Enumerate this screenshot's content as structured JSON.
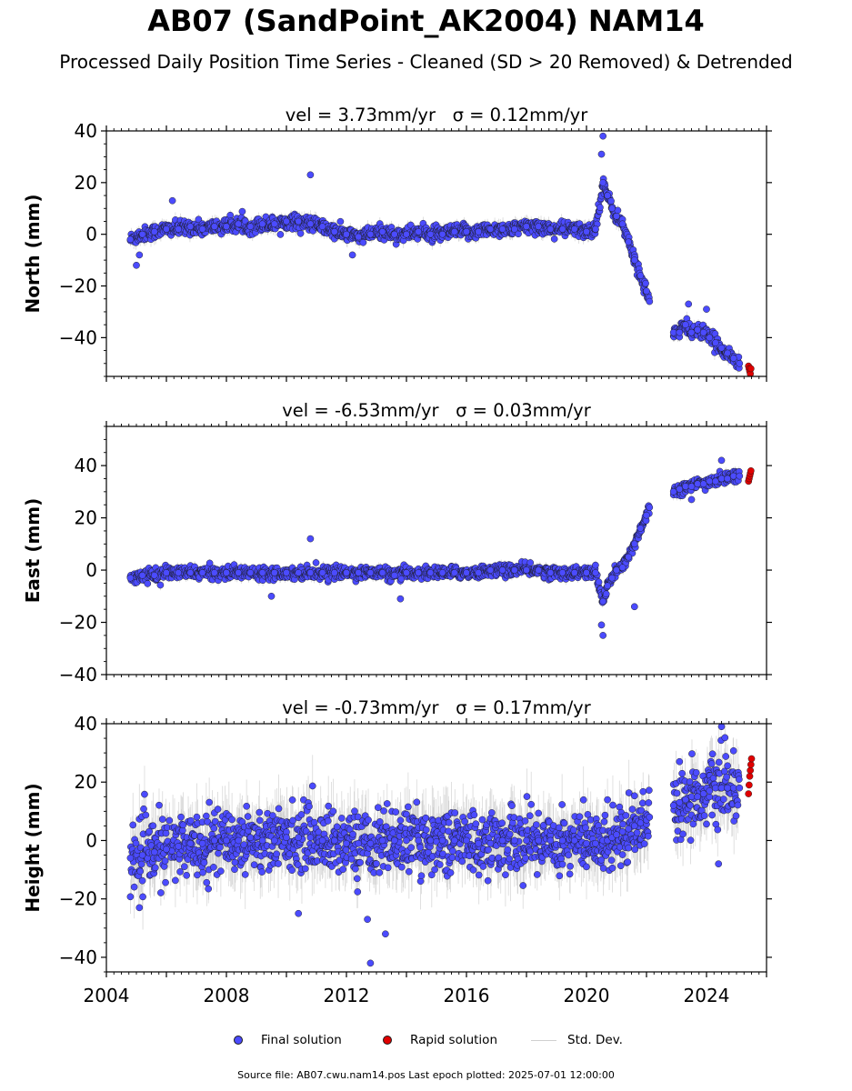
{
  "figure": {
    "title": "AB07 (SandPoint_AK2004) NAM14",
    "subtitle": "Processed Daily Position Time Series - Cleaned (SD > 20 Removed) & Detrended",
    "footer": "Source file: AB07.cwu.nam14.pos  Last epoch plotted: 2025-07-01 12:00:00"
  },
  "legend": {
    "final": "Final solution",
    "rapid": "Rapid solution",
    "stddev": "Std. Dev."
  },
  "colors": {
    "final": "#4b4bff",
    "rapid": "#e00000",
    "stddev": "#c8c8c8",
    "marker_edge": "#1a1a1a"
  },
  "chart_data": [
    {
      "type": "scatter",
      "panel": "north",
      "title": "vel = 3.73mm/yr   σ = 0.12mm/yr",
      "xlabel": "",
      "ylabel": "North (mm)",
      "xlim": [
        2004.0,
        2026.0
      ],
      "ylim": [
        -55,
        40
      ],
      "yticks": [
        -40,
        -20,
        0,
        20,
        40
      ],
      "xticks": [
        2004,
        2008,
        2012,
        2016,
        2020,
        2024
      ],
      "show_xticklabels": false,
      "grid": false,
      "series": [
        {
          "name": "Final solution",
          "x": [
            2004.8,
            2005.2,
            2005.6,
            2006.0,
            2006.4,
            2006.8,
            2007.2,
            2007.6,
            2008.0,
            2008.4,
            2008.8,
            2009.2,
            2009.6,
            2010.0,
            2010.4,
            2010.8,
            2011.2,
            2011.6,
            2012.0,
            2012.4,
            2012.8,
            2013.2,
            2013.6,
            2014.0,
            2014.4,
            2014.8,
            2015.2,
            2015.6,
            2016.0,
            2016.4,
            2016.8,
            2017.2,
            2017.6,
            2018.0,
            2018.4,
            2018.8,
            2019.2,
            2019.6,
            2020.0,
            2020.3,
            2020.55,
            2020.7,
            2020.85,
            2021.0,
            2021.2,
            2021.4,
            2021.6,
            2021.8,
            2022.0,
            2022.1,
            2022.9,
            2023.1,
            2023.3,
            2023.5,
            2023.7,
            2023.9,
            2024.1,
            2024.3,
            2024.5,
            2024.7,
            2024.9,
            2025.1
          ],
          "y": [
            -2,
            0,
            1,
            2,
            2,
            3,
            2,
            3,
            3,
            4,
            3,
            4,
            4,
            5,
            5,
            4,
            3,
            1,
            0,
            -1,
            0,
            1,
            0,
            0,
            1,
            0,
            0,
            1,
            1,
            1,
            2,
            2,
            2,
            3,
            3,
            2,
            2,
            2,
            1,
            2,
            20,
            15,
            10,
            7,
            4,
            -3,
            -10,
            -16,
            -22,
            -26,
            -38,
            -38,
            -35,
            -38,
            -37,
            -38,
            -40,
            -42,
            -44,
            -46,
            -48,
            -50
          ],
          "sd": 2,
          "jitter": 3
        },
        {
          "name": "Rapid solution",
          "x": [
            2025.4,
            2025.42,
            2025.44,
            2025.46,
            2025.48
          ],
          "y": [
            -51,
            -52,
            -53,
            -54,
            -52
          ]
        }
      ],
      "outliers": [
        [
          2005.0,
          -12
        ],
        [
          2005.1,
          -8
        ],
        [
          2006.2,
          13
        ],
        [
          2010.8,
          23
        ],
        [
          2020.55,
          38
        ],
        [
          2020.5,
          31
        ],
        [
          2023.4,
          -27
        ],
        [
          2024.0,
          -29
        ],
        [
          2012.2,
          -8
        ]
      ]
    },
    {
      "type": "scatter",
      "panel": "east",
      "title": "vel = -6.53mm/yr   σ = 0.03mm/yr",
      "xlabel": "",
      "ylabel": "East (mm)",
      "xlim": [
        2004.0,
        2026.0
      ],
      "ylim": [
        -40,
        55
      ],
      "yticks": [
        -40,
        -20,
        0,
        20,
        40
      ],
      "xticks": [
        2004,
        2008,
        2012,
        2016,
        2020,
        2024
      ],
      "show_xticklabels": false,
      "grid": false,
      "series": [
        {
          "name": "Final solution",
          "x": [
            2004.8,
            2005.2,
            2005.6,
            2006.0,
            2006.4,
            2006.8,
            2007.2,
            2007.6,
            2008.0,
            2008.4,
            2008.8,
            2009.2,
            2009.6,
            2010.0,
            2010.4,
            2010.8,
            2011.2,
            2011.6,
            2012.0,
            2012.4,
            2012.8,
            2013.2,
            2013.6,
            2014.0,
            2014.4,
            2014.8,
            2015.2,
            2015.6,
            2016.0,
            2016.4,
            2016.8,
            2017.2,
            2017.6,
            2018.0,
            2018.4,
            2018.8,
            2019.2,
            2019.6,
            2020.0,
            2020.3,
            2020.55,
            2020.7,
            2020.85,
            2021.0,
            2021.2,
            2021.4,
            2021.6,
            2021.8,
            2022.0,
            2022.1,
            2022.9,
            2023.1,
            2023.3,
            2023.5,
            2023.7,
            2023.9,
            2024.1,
            2024.3,
            2024.5,
            2024.7,
            2024.9,
            2025.1
          ],
          "y": [
            -3,
            -2,
            -2,
            -1,
            -1,
            -1,
            -1,
            -1,
            -1,
            -1,
            -1,
            -1,
            -1,
            -1,
            -1,
            -1,
            -1,
            -1,
            -1,
            -1,
            -1,
            -1,
            -2,
            -1,
            -1,
            -1,
            -1,
            -1,
            -1,
            -1,
            0,
            0,
            0,
            0,
            0,
            -1,
            -1,
            -1,
            -1,
            -1,
            -12,
            -6,
            -3,
            0,
            1,
            5,
            10,
            16,
            21,
            24,
            30,
            31,
            32,
            32,
            33,
            33,
            34,
            34,
            35,
            35,
            36,
            36
          ],
          "sd": 1.5,
          "jitter": 2.5
        },
        {
          "name": "Rapid solution",
          "x": [
            2025.4,
            2025.42,
            2025.44,
            2025.46,
            2025.48
          ],
          "y": [
            34,
            35,
            36,
            37,
            38
          ]
        }
      ],
      "outliers": [
        [
          2009.5,
          -10
        ],
        [
          2010.8,
          12
        ],
        [
          2013.8,
          -11
        ],
        [
          2020.55,
          -25
        ],
        [
          2020.5,
          -21
        ],
        [
          2021.6,
          -14
        ],
        [
          2023.5,
          27
        ],
        [
          2024.5,
          42
        ]
      ]
    },
    {
      "type": "scatter",
      "panel": "height",
      "title": "vel = -0.73mm/yr   σ = 0.17mm/yr",
      "xlabel": "",
      "ylabel": "Height (mm)",
      "xlim": [
        2004.0,
        2026.0
      ],
      "ylim": [
        -45,
        40
      ],
      "yticks": [
        -40,
        -20,
        0,
        20,
        40
      ],
      "xticks": [
        2004,
        2008,
        2012,
        2016,
        2020,
        2024
      ],
      "xticklabels": [
        "2004",
        "2008",
        "2012",
        "2016",
        "2020",
        "2024"
      ],
      "show_xticklabels": true,
      "grid": false,
      "series": [
        {
          "name": "Final solution",
          "x": [
            2004.8,
            2005.2,
            2005.6,
            2006.0,
            2006.4,
            2006.8,
            2007.2,
            2007.6,
            2008.0,
            2008.4,
            2008.8,
            2009.2,
            2009.6,
            2010.0,
            2010.4,
            2010.8,
            2011.2,
            2011.6,
            2012.0,
            2012.4,
            2012.8,
            2013.2,
            2013.6,
            2014.0,
            2014.4,
            2014.8,
            2015.2,
            2015.6,
            2016.0,
            2016.4,
            2016.8,
            2017.2,
            2017.6,
            2018.0,
            2018.4,
            2018.8,
            2019.2,
            2019.6,
            2020.0,
            2020.3,
            2020.55,
            2020.7,
            2020.85,
            2021.0,
            2021.2,
            2021.4,
            2021.6,
            2021.8,
            2022.0,
            2022.1,
            2022.9,
            2023.1,
            2023.3,
            2023.5,
            2023.7,
            2023.9,
            2024.1,
            2024.3,
            2024.5,
            2024.7,
            2024.9,
            2025.1
          ],
          "y": [
            -6,
            -5,
            -4,
            -3,
            -2,
            -1,
            -1,
            0,
            0,
            0,
            1,
            0,
            0,
            1,
            1,
            1,
            0,
            0,
            -1,
            -1,
            -1,
            0,
            0,
            0,
            0,
            0,
            0,
            0,
            0,
            -1,
            -1,
            0,
            0,
            0,
            0,
            0,
            0,
            0,
            -1,
            -1,
            0,
            0,
            1,
            2,
            3,
            4,
            5,
            6,
            7,
            8,
            12,
            13,
            14,
            15,
            15,
            16,
            17,
            18,
            18,
            18,
            18,
            18
          ],
          "sd": 8,
          "jitter": 12
        },
        {
          "name": "Rapid solution",
          "x": [
            2025.4,
            2025.42,
            2025.44,
            2025.46,
            2025.48,
            2025.5
          ],
          "y": [
            16,
            19,
            22,
            24,
            26,
            28
          ]
        }
      ],
      "outliers": [
        [
          2012.8,
          -42
        ],
        [
          2013.3,
          -32
        ],
        [
          2012.7,
          -27
        ],
        [
          2010.4,
          -25
        ],
        [
          2005.1,
          -23
        ],
        [
          2024.5,
          39
        ],
        [
          2023.1,
          27
        ],
        [
          2024.4,
          -8
        ]
      ]
    }
  ]
}
